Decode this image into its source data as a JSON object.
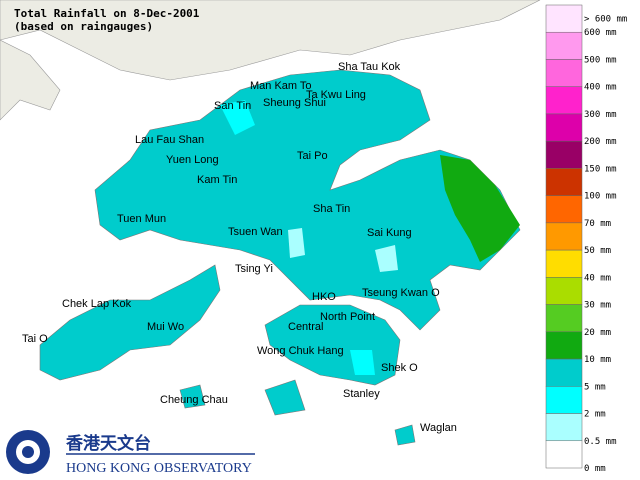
{
  "title": {
    "line1": "Total Rainfall on 8-Dec-2001",
    "line2": "(based on raingauges)"
  },
  "places": [
    "Sha Tau Kok",
    "Man Kam To",
    "Ta Kwu Ling",
    "San Tin",
    "Sheung Shui",
    "Lau Fau Shan",
    "Yuen Long",
    "Tai Po",
    "Kam Tin",
    "Sha Tin",
    "Tuen Mun",
    "Tsuen Wan",
    "Sai Kung",
    "Tsing Yi",
    "Chek Lap Kok",
    "HKO",
    "Tseung Kwan O",
    "Mui Wo",
    "Tai O",
    "North Point",
    "Central",
    "Wong Chuk Hang",
    "Shek O",
    "Cheung Chau",
    "Stanley",
    "Waglan"
  ],
  "legend": {
    "colors": [
      "#ffe4ff",
      "#ff99ee",
      "#ff66dd",
      "#ff22cc",
      "#dd00aa",
      "#990066",
      "#cc3300",
      "#ff6600",
      "#ff9900",
      "#ffdd00",
      "#aadd00",
      "#55cc22",
      "#11aa11",
      "#00cccc",
      "#00ffff",
      "#aaffff",
      "#ffffff"
    ],
    "labels": [
      "> 600 mm",
      "600 mm",
      "500 mm",
      "400 mm",
      "300 mm",
      "200 mm",
      "150 mm",
      "100 mm",
      "70 mm",
      "50 mm",
      "40 mm",
      "30 mm",
      "20 mm",
      "10 mm",
      "5 mm",
      "2 mm",
      "0.5 mm",
      "0 mm"
    ]
  },
  "logo": {
    "chinese": "香港天文台",
    "english": "HONG KONG OBSERVATORY"
  }
}
